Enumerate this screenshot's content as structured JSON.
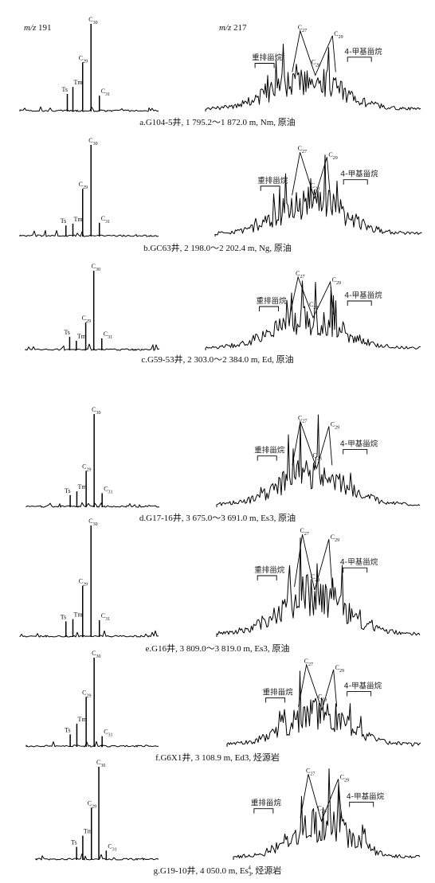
{
  "chart_data": [
    {
      "type": "line",
      "ion_left": "m/z 191",
      "ion_right": "m/z 217",
      "caption": "a.G104-5井, 1 795.2～1 872.0 m, Nm, 原油",
      "triterpanes": [
        {
          "peak": "Ts",
          "position": 0.34,
          "intensity": 0.2
        },
        {
          "peak": "Tm",
          "position": 0.38,
          "intensity": 0.28
        },
        {
          "peak": "C29",
          "position": 0.45,
          "intensity": 0.56
        },
        {
          "peak": "C30",
          "position": 0.51,
          "intensity": 1.0
        },
        {
          "peak": "C31",
          "position": 0.57,
          "intensity": 0.18
        }
      ],
      "steranes": [
        {
          "label": "重排甾烷"
        },
        {
          "label": "C27"
        },
        {
          "label": "C28"
        },
        {
          "label": "C29"
        },
        {
          "label": "4-甲基甾烷"
        }
      ]
    },
    {
      "type": "line",
      "caption": "b.GC63井, 2 198.0～2 202.4 m, Ng, 原油",
      "triterpanes": [
        {
          "peak": "Ts",
          "position": 0.33,
          "intensity": 0.12
        },
        {
          "peak": "Tm",
          "position": 0.38,
          "intensity": 0.14
        },
        {
          "peak": "C29",
          "position": 0.45,
          "intensity": 0.52
        },
        {
          "peak": "C30",
          "position": 0.51,
          "intensity": 1.0
        },
        {
          "peak": "C31",
          "position": 0.57,
          "intensity": 0.15
        }
      ],
      "steranes": [
        {
          "label": "重排甾烷"
        },
        {
          "label": "C27"
        },
        {
          "label": "C28"
        },
        {
          "label": "C29"
        },
        {
          "label": "4-甲基甾烷"
        }
      ]
    },
    {
      "type": "line",
      "caption": "c.G59-53井, 2 303.0～2 384.0 m, Ed, 原油",
      "triterpanes": [
        {
          "peak": "Ts",
          "position": 0.33,
          "intensity": 0.17
        },
        {
          "peak": "Tm",
          "position": 0.38,
          "intensity": 0.12
        },
        {
          "peak": "C29",
          "position": 0.45,
          "intensity": 0.35
        },
        {
          "peak": "C30",
          "position": 0.51,
          "intensity": 1.0
        },
        {
          "peak": "C31",
          "position": 0.57,
          "intensity": 0.15
        }
      ],
      "steranes": [
        {
          "label": "重排甾烷"
        },
        {
          "label": "C27"
        },
        {
          "label": "C28"
        },
        {
          "label": "C29"
        },
        {
          "label": "4-甲基甾烷"
        }
      ]
    },
    {
      "type": "line",
      "caption": "d.G17-16井, 3 675.0～3 691.0 m, Es3, 原油",
      "triterpanes": [
        {
          "peak": "Ts",
          "position": 0.33,
          "intensity": 0.13
        },
        {
          "peak": "Tm",
          "position": 0.38,
          "intensity": 0.17
        },
        {
          "peak": "C29",
          "position": 0.45,
          "intensity": 0.39
        },
        {
          "peak": "C30",
          "position": 0.51,
          "intensity": 1.0
        },
        {
          "peak": "C31",
          "position": 0.57,
          "intensity": 0.15
        }
      ],
      "steranes": [
        {
          "label": "重排甾烷"
        },
        {
          "label": "C27"
        },
        {
          "label": "C28"
        },
        {
          "label": "C29"
        },
        {
          "label": "4-甲基甾烷"
        }
      ]
    },
    {
      "type": "line",
      "caption": "e.G16井, 3 809.0～3 819.0 m, Es3, 原油",
      "triterpanes": [
        {
          "peak": "Ts",
          "position": 0.33,
          "intensity": 0.14
        },
        {
          "peak": "Tm",
          "position": 0.38,
          "intensity": 0.16
        },
        {
          "peak": "C29",
          "position": 0.45,
          "intensity": 0.46
        },
        {
          "peak": "C30",
          "position": 0.51,
          "intensity": 1.0
        },
        {
          "peak": "C31",
          "position": 0.57,
          "intensity": 0.15
        }
      ],
      "steranes": [
        {
          "label": "重排甾烷"
        },
        {
          "label": "C27"
        },
        {
          "label": "C28"
        },
        {
          "label": "C29"
        },
        {
          "label": "4-甲基甾烷"
        }
      ]
    },
    {
      "type": "line",
      "caption": "f.G6X1井, 3 108.9 m, Ed3, 烃源岩",
      "triterpanes": [
        {
          "peak": "Ts",
          "position": 0.33,
          "intensity": 0.14
        },
        {
          "peak": "Tm",
          "position": 0.38,
          "intensity": 0.26
        },
        {
          "peak": "C29",
          "position": 0.45,
          "intensity": 0.56
        },
        {
          "peak": "C30",
          "position": 0.51,
          "intensity": 1.0
        },
        {
          "peak": "C31",
          "position": 0.57,
          "intensity": 0.12
        }
      ],
      "steranes": [
        {
          "label": "重排甾烷"
        },
        {
          "label": "C27"
        },
        {
          "label": "C28"
        },
        {
          "label": "C29"
        },
        {
          "label": "4-甲基甾烷"
        }
      ]
    },
    {
      "type": "line",
      "caption": "g.G19-10井, 4 050.0 m, Es3, 烃源岩",
      "caption_superscript": "4",
      "triterpanes": [
        {
          "peak": "Ts",
          "position": 0.33,
          "intensity": 0.14
        },
        {
          "peak": "Tm",
          "position": 0.38,
          "intensity": 0.26
        },
        {
          "peak": "C29",
          "position": 0.45,
          "intensity": 0.56
        },
        {
          "peak": "C30",
          "position": 0.51,
          "intensity": 1.0
        },
        {
          "peak": "C31",
          "position": 0.57,
          "intensity": 0.1
        }
      ],
      "steranes": [
        {
          "label": "重排甾烷"
        },
        {
          "label": "C27"
        },
        {
          "label": "C28"
        },
        {
          "label": "C29"
        },
        {
          "label": "4-甲基甾烷"
        }
      ]
    }
  ]
}
